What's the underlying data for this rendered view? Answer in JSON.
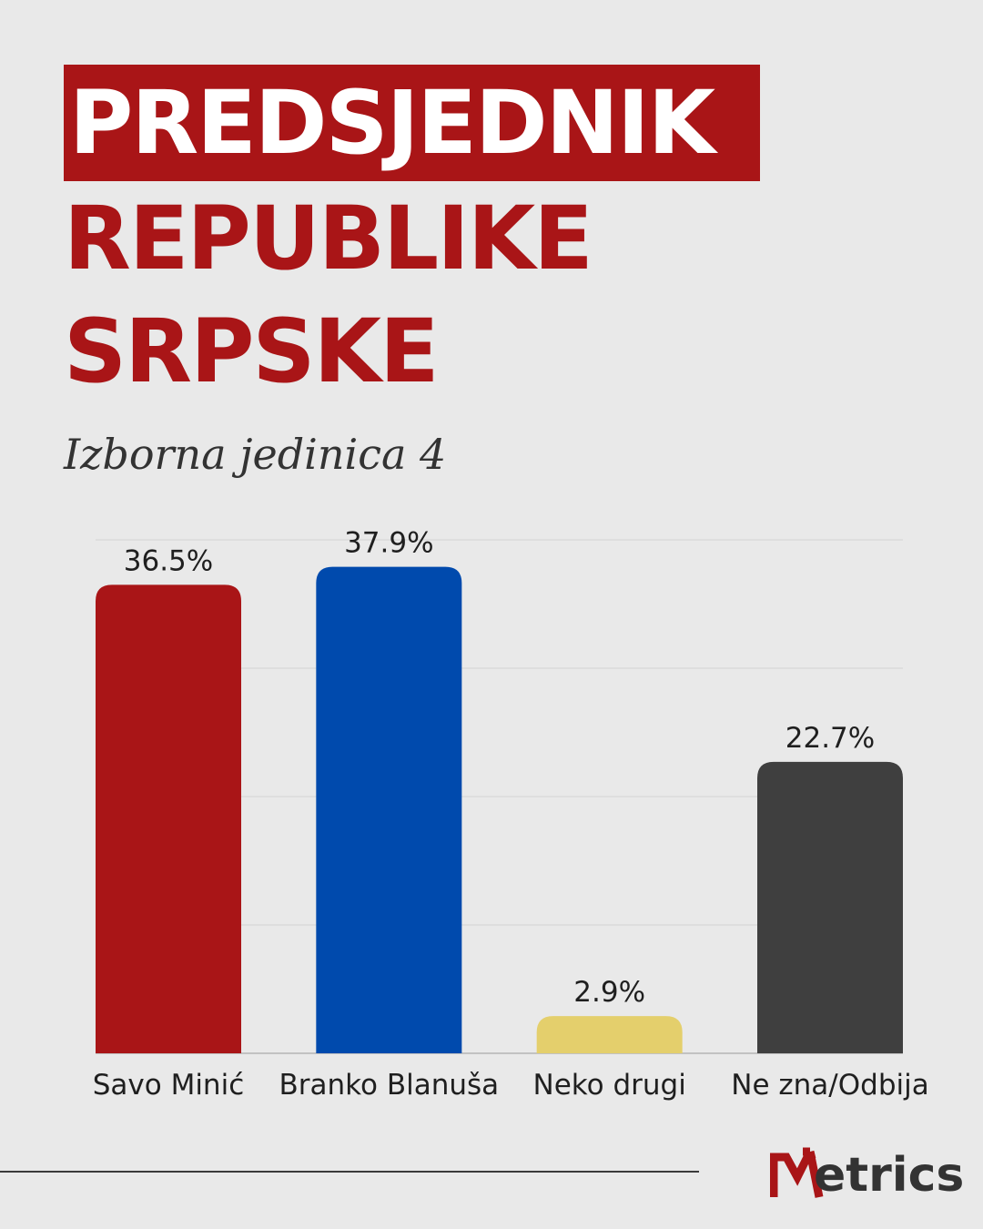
{
  "title": {
    "line1": "PREDSJEDNIK",
    "line2": "REPUBLIKE",
    "line3": "SRPSKE"
  },
  "subtitle": "Izborna jedinica 4",
  "brand": {
    "logo_text": "etrics",
    "accent": "#a91517",
    "text_color": "#333333"
  },
  "colors": {
    "background": "#e9e9e9",
    "title_red": "#a91517"
  },
  "chart_data": {
    "type": "bar",
    "categories": [
      "Savo Minić",
      "Branko Blanuša",
      "Neko drugi",
      "Ne zna/Odbija"
    ],
    "values": [
      36.5,
      37.9,
      2.9,
      22.7
    ],
    "labels": [
      "36.5%",
      "37.9%",
      "2.9%",
      "22.7%"
    ],
    "colors": [
      "#a91517",
      "#004aad",
      "#e4cf6c",
      "#3f3f3f"
    ],
    "ylim": [
      0,
      40
    ],
    "grid": true,
    "legend": "none"
  }
}
